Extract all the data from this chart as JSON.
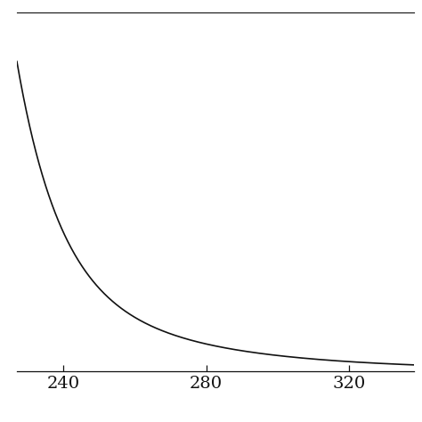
{
  "title": "",
  "xlabel": "",
  "ylabel": "",
  "xlim": [
    227,
    338
  ],
  "ylim": [
    0.0,
    1.8
  ],
  "xticks": [
    240,
    280,
    320
  ],
  "line_color": "#111111",
  "background_color": "#ffffff",
  "linewidth": 1.2,
  "curve_start_x": 227,
  "curve_end_x": 338,
  "decay_rate": 0.085,
  "peak_value": 1.55,
  "baseline": 0.005
}
